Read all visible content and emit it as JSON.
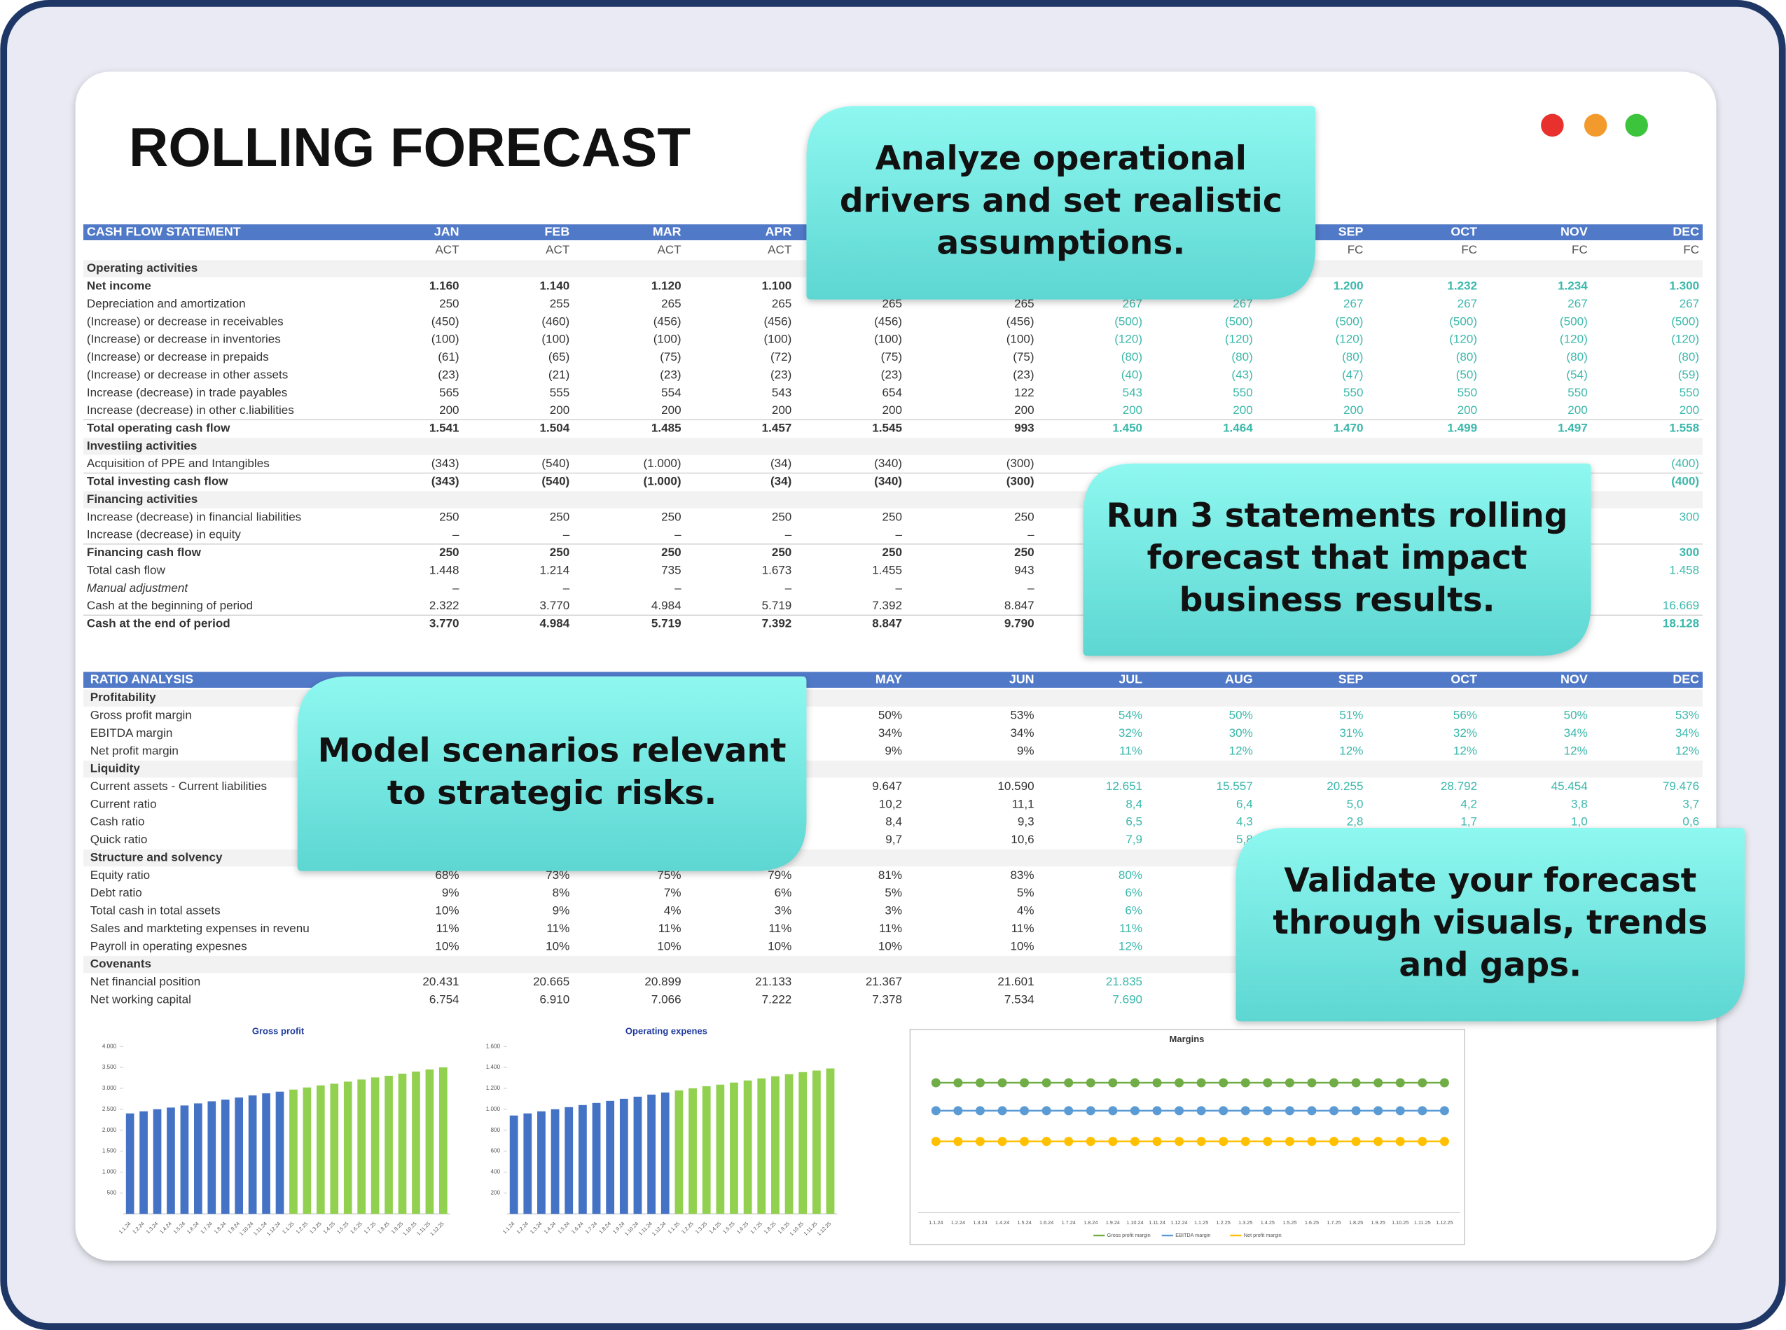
{
  "title": "ROLLING FORECAST",
  "callouts": [
    [
      "Analyze operational",
      "drivers and set realistic",
      "assumptions."
    ],
    [
      "Run 3 statements rolling",
      "forecast that impact",
      "business results."
    ],
    [
      "Model scenarios relevant",
      "to strategic risks."
    ],
    [
      "Validate your forecast",
      "through visuals, trends",
      "and gaps."
    ]
  ],
  "column_colors": [
    "#333333",
    "#333333",
    "#333333",
    "#333333",
    "#333333",
    "#333333",
    "#3bb8ab",
    "#3bb8ab",
    "#3bb8ab",
    "#3bb8ab",
    "#3bb8ab",
    "#3bb8ab"
  ],
  "cash_flow": {
    "label": "CASH FLOW STATEMENT",
    "months": [
      "JAN",
      "FEB",
      "MAR",
      "APR",
      null,
      null,
      null,
      null,
      "SEP",
      "OCT",
      "NOV",
      "DEC"
    ],
    "subheader": [
      "ACT",
      "ACT",
      "ACT",
      "ACT",
      null,
      null,
      null,
      null,
      "FC",
      "FC",
      "FC",
      "FC"
    ],
    "rows": [
      {
        "label": "Operating activities",
        "style": "section",
        "cells": []
      },
      {
        "label": "Net income",
        "style": "bold",
        "cells": [
          "1.160",
          "1.140",
          "1.120",
          "1.100",
          null,
          null,
          null,
          null,
          "1.200",
          "1.232",
          "1.234",
          "1.300"
        ]
      },
      {
        "label": "Depreciation and amortization",
        "style": "normal",
        "cells": [
          "250",
          "255",
          "265",
          "265",
          "265",
          "265",
          "267",
          "267",
          "267",
          "267",
          "267",
          "267"
        ]
      },
      {
        "label": "(Increase) or decrease in receivables",
        "style": "normal",
        "cells": [
          "(450)",
          "(460)",
          "(456)",
          "(456)",
          "(456)",
          "(456)",
          "(500)",
          "(500)",
          "(500)",
          "(500)",
          "(500)",
          "(500)"
        ]
      },
      {
        "label": "(Increase) or decrease in inventories",
        "style": "normal",
        "cells": [
          "(100)",
          "(100)",
          "(100)",
          "(100)",
          "(100)",
          "(100)",
          "(120)",
          "(120)",
          "(120)",
          "(120)",
          "(120)",
          "(120)"
        ]
      },
      {
        "label": "(Increase) or decrease in prepaids",
        "style": "normal",
        "cells": [
          "(61)",
          "(65)",
          "(75)",
          "(72)",
          "(75)",
          "(75)",
          "(80)",
          "(80)",
          "(80)",
          "(80)",
          "(80)",
          "(80)"
        ]
      },
      {
        "label": "(Increase) or decrease in other assets",
        "style": "normal",
        "cells": [
          "(23)",
          "(21)",
          "(23)",
          "(23)",
          "(23)",
          "(23)",
          "(40)",
          "(43)",
          "(47)",
          "(50)",
          "(54)",
          "(59)"
        ]
      },
      {
        "label": "Increase (decrease) in trade payables",
        "style": "normal",
        "cells": [
          "565",
          "555",
          "554",
          "543",
          "654",
          "122",
          "543",
          "550",
          "550",
          "550",
          "550",
          "550"
        ]
      },
      {
        "label": "Increase (decrease) in other c.liabilities",
        "style": "normal",
        "cells": [
          "200",
          "200",
          "200",
          "200",
          "200",
          "200",
          "200",
          "200",
          "200",
          "200",
          "200",
          "200"
        ]
      },
      {
        "label": "Total operating cash flow",
        "style": "bold",
        "cells": [
          "1.541",
          "1.504",
          "1.485",
          "1.457",
          "1.545",
          "993",
          "1.450",
          "1.464",
          "1.470",
          "1.499",
          "1.497",
          "1.558"
        ]
      },
      {
        "label": "Investiing activities",
        "style": "section",
        "cells": []
      },
      {
        "label": "Acquisition of PPE and Intangibles",
        "style": "normal",
        "cells": [
          "(343)",
          "(540)",
          "(1.000)",
          "(34)",
          "(340)",
          "(300)",
          null,
          null,
          null,
          null,
          null,
          "(400)"
        ]
      },
      {
        "label": "Total investing cash flow",
        "style": "bold",
        "cells": [
          "(343)",
          "(540)",
          "(1.000)",
          "(34)",
          "(340)",
          "(300)",
          null,
          null,
          null,
          null,
          null,
          "(400)"
        ]
      },
      {
        "label": "Financing activities",
        "style": "section",
        "cells": []
      },
      {
        "label": "Increase (decrease) in financial liabilities",
        "style": "normal",
        "cells": [
          "250",
          "250",
          "250",
          "250",
          "250",
          "250",
          null,
          null,
          null,
          null,
          null,
          "300"
        ]
      },
      {
        "label": "Increase (decrease) in equity",
        "style": "normal",
        "cells": [
          "–",
          "–",
          "–",
          "–",
          "–",
          "–",
          null,
          null,
          null,
          null,
          null,
          null
        ]
      },
      {
        "label": "Financing cash flow",
        "style": "bold",
        "cells": [
          "250",
          "250",
          "250",
          "250",
          "250",
          "250",
          null,
          null,
          null,
          null,
          null,
          "300"
        ]
      },
      {
        "label": "Total cash flow",
        "style": "normal",
        "cells": [
          "1.448",
          "1.214",
          "735",
          "1.673",
          "1.455",
          "943",
          null,
          null,
          null,
          null,
          null,
          "1.458"
        ]
      },
      {
        "label": "Manual adjustment",
        "style": "italic",
        "cells": [
          "–",
          "–",
          "–",
          "–",
          "–",
          "–",
          null,
          null,
          null,
          null,
          null,
          null
        ]
      },
      {
        "label": "Cash at the beginning of period",
        "style": "normal",
        "cells": [
          "2.322",
          "3.770",
          "4.984",
          "5.719",
          "7.392",
          "8.847",
          null,
          null,
          null,
          null,
          null,
          "16.669"
        ]
      },
      {
        "label": "Cash at the end of period",
        "style": "bold",
        "cells": [
          "3.770",
          "4.984",
          "5.719",
          "7.392",
          "8.847",
          "9.790",
          null,
          null,
          null,
          null,
          null,
          "18.128"
        ]
      }
    ]
  },
  "ratio_analysis": {
    "label": "RATIO ANALYSIS",
    "months": [
      null,
      null,
      null,
      null,
      "MAY",
      "JUN",
      "JUL",
      "AUG",
      "SEP",
      "OCT",
      "NOV",
      "DEC"
    ],
    "rows": [
      {
        "label": "Profitability",
        "style": "section",
        "cells": []
      },
      {
        "label": "Gross profit margin",
        "style": "normal",
        "cells": [
          null,
          null,
          null,
          null,
          "50%",
          "53%",
          "54%",
          "50%",
          "51%",
          "56%",
          "50%",
          "53%"
        ]
      },
      {
        "label": "EBITDA margin",
        "style": "normal",
        "cells": [
          null,
          null,
          null,
          null,
          "34%",
          "34%",
          "32%",
          "30%",
          "31%",
          "32%",
          "34%",
          "34%"
        ]
      },
      {
        "label": "Net profit margin",
        "style": "normal",
        "cells": [
          null,
          null,
          null,
          null,
          "9%",
          "9%",
          "11%",
          "12%",
          "12%",
          "12%",
          "12%",
          "12%"
        ]
      },
      {
        "label": "Liquidity",
        "style": "section",
        "cells": []
      },
      {
        "label": "Current assets - Current liabilities",
        "style": "normal",
        "cells": [
          null,
          null,
          null,
          null,
          "9.647",
          "10.590",
          "12.651",
          "15.557",
          "20.255",
          "28.792",
          "45.454",
          "79.476"
        ]
      },
      {
        "label": "Current ratio",
        "style": "normal",
        "cells": [
          null,
          null,
          null,
          null,
          "10,2",
          "11,1",
          "8,4",
          "6,4",
          "5,0",
          "4,2",
          "3,8",
          "3,7"
        ]
      },
      {
        "label": "Cash ratio",
        "style": "normal",
        "cells": [
          null,
          null,
          null,
          null,
          "8,4",
          "9,3",
          "6,5",
          "4,3",
          "2,8",
          "1,7",
          "1,0",
          "0,6"
        ]
      },
      {
        "label": "Quick ratio",
        "style": "normal",
        "cells": [
          null,
          null,
          null,
          null,
          "9,7",
          "10,6",
          "7,9",
          "5,8",
          null,
          null,
          null,
          null
        ]
      },
      {
        "label": "Structure and solvency",
        "style": "section",
        "cells": []
      },
      {
        "label": "Equity ratio",
        "style": "normal",
        "cells": [
          "68%",
          "73%",
          "75%",
          "79%",
          "81%",
          "83%",
          "80%",
          null,
          null,
          null,
          null,
          null
        ]
      },
      {
        "label": "Debt ratio",
        "style": "normal",
        "cells": [
          "9%",
          "8%",
          "7%",
          "6%",
          "5%",
          "5%",
          "6%",
          null,
          null,
          null,
          null,
          null
        ]
      },
      {
        "label": "Total cash in total assets",
        "style": "normal",
        "cells": [
          "10%",
          "9%",
          "4%",
          "3%",
          "3%",
          "4%",
          "6%",
          null,
          null,
          null,
          null,
          null
        ]
      },
      {
        "label": "Sales and markteting expenses in revenu",
        "style": "normal",
        "cells": [
          "11%",
          "11%",
          "11%",
          "11%",
          "11%",
          "11%",
          "11%",
          null,
          null,
          null,
          null,
          null
        ]
      },
      {
        "label": "Payroll in operating expesnes",
        "style": "normal",
        "cells": [
          "10%",
          "10%",
          "10%",
          "10%",
          "10%",
          "10%",
          "12%",
          null,
          null,
          null,
          null,
          null
        ]
      },
      {
        "label": "Covenants",
        "style": "section",
        "cells": []
      },
      {
        "label": "Net financial position",
        "style": "normal",
        "cells": [
          "20.431",
          "20.665",
          "20.899",
          "21.133",
          "21.367",
          "21.601",
          "21.835",
          null,
          null,
          null,
          null,
          null
        ]
      },
      {
        "label": "Net working capital",
        "style": "normal",
        "cells": [
          "6.754",
          "6.910",
          "7.066",
          "7.222",
          "7.378",
          "7.534",
          "7.690",
          null,
          null,
          null,
          null,
          null
        ]
      }
    ]
  },
  "chart_data": [
    {
      "type": "bar",
      "title": "Gross profit",
      "categories": [
        "1.1.24",
        "1.2.24",
        "1.3.24",
        "1.4.24",
        "1.5.24",
        "1.6.24",
        "1.7.24",
        "1.8.24",
        "1.9.24",
        "1.10.24",
        "1.11.24",
        "1.12.24",
        "1.1.25",
        "1.2.25",
        "1.3.25",
        "1.4.25",
        "1.5.25",
        "1.6.25",
        "1.7.25",
        "1.8.25",
        "1.9.25",
        "1.10.25",
        "1.11.25",
        "1.12.25"
      ],
      "values": [
        2400,
        2450,
        2500,
        2540,
        2590,
        2640,
        2690,
        2730,
        2780,
        2830,
        2880,
        2920,
        2970,
        3020,
        3070,
        3110,
        3160,
        3210,
        3260,
        3300,
        3350,
        3400,
        3450,
        3500
      ],
      "colors": [
        "#4472c4",
        "#4472c4",
        "#4472c4",
        "#4472c4",
        "#4472c4",
        "#4472c4",
        "#4472c4",
        "#4472c4",
        "#4472c4",
        "#4472c4",
        "#4472c4",
        "#4472c4",
        "#92d050",
        "#92d050",
        "#92d050",
        "#92d050",
        "#92d050",
        "#92d050",
        "#92d050",
        "#92d050",
        "#92d050",
        "#92d050",
        "#92d050",
        "#92d050"
      ],
      "ylim": [
        0,
        4000
      ],
      "yticks": [
        500,
        {
          "value": 1000,
          "label": "1.000"
        },
        {
          "value": 1500,
          "label": "1.500"
        },
        {
          "value": 2000,
          "label": "2.000"
        },
        {
          "value": 2500,
          "label": "2.500"
        },
        {
          "value": 3000,
          "label": "3.000"
        },
        {
          "value": 3500,
          "label": "3.500"
        },
        {
          "value": 4000,
          "label": "4.000"
        }
      ]
    },
    {
      "type": "bar",
      "title": "Operating expenes",
      "categories": [
        "1.1.24",
        "1.2.24",
        "1.3.24",
        "1.4.24",
        "1.5.24",
        "1.6.24",
        "1.7.24",
        "1.8.24",
        "1.9.24",
        "1.10.24",
        "1.11.24",
        "1.12.24",
        "1.1.25",
        "1.2.25",
        "1.3.25",
        "1.4.25",
        "1.5.25",
        "1.6.25",
        "1.7.25",
        "1.8.25",
        "1.9.25",
        "1.10.25",
        "1.11.25",
        "1.12.25"
      ],
      "values": [
        940,
        960,
        980,
        1000,
        1020,
        1040,
        1060,
        1080,
        1100,
        1120,
        1140,
        1160,
        1180,
        1200,
        1220,
        1235,
        1255,
        1275,
        1295,
        1315,
        1335,
        1355,
        1370,
        1390
      ],
      "colors": [
        "#4472c4",
        "#4472c4",
        "#4472c4",
        "#4472c4",
        "#4472c4",
        "#4472c4",
        "#4472c4",
        "#4472c4",
        "#4472c4",
        "#4472c4",
        "#4472c4",
        "#4472c4",
        "#92d050",
        "#92d050",
        "#92d050",
        "#92d050",
        "#92d050",
        "#92d050",
        "#92d050",
        "#92d050",
        "#92d050",
        "#92d050",
        "#92d050",
        "#92d050"
      ],
      "ylim": [
        0,
        1600
      ],
      "yticks": [
        200,
        400,
        600,
        800,
        {
          "value": 1000,
          "label": "1.000"
        },
        {
          "value": 1200,
          "label": "1.200"
        },
        {
          "value": 1400,
          "label": "1.400"
        },
        {
          "value": 1600,
          "label": "1.600"
        }
      ]
    },
    {
      "type": "line",
      "title": "Margins",
      "categories": [
        "1.1.24",
        "1.2.24",
        "1.3.24",
        "1.4.24",
        "1.5.24",
        "1.6.24",
        "1.7.24",
        "1.8.24",
        "1.9.24",
        "1.10.24",
        "1.11.24",
        "1.12.24",
        "1.1.25",
        "1.2.25",
        "1.3.25",
        "1.4.25",
        "1.5.25",
        "1.6.25",
        "1.7.25",
        "1.8.25",
        "1.9.25",
        "1.10.25",
        "1.11.25",
        "1.12.25"
      ],
      "ylim": [
        -40,
        70
      ],
      "series": [
        {
          "name": "Gross profit margin",
          "color": "#70ad47",
          "values": [
            53,
            53,
            53,
            53,
            53,
            53,
            53,
            53,
            53,
            53,
            53,
            53,
            53,
            53,
            53,
            53,
            53,
            53,
            53,
            53,
            53,
            53,
            53,
            53
          ]
        },
        {
          "name": "EBITDA margin",
          "color": "#5b9bd5",
          "values": [
            33,
            33,
            33,
            33,
            33,
            33,
            33,
            33,
            33,
            33,
            33,
            33,
            33,
            33,
            33,
            33,
            33,
            33,
            33,
            33,
            33,
            33,
            33,
            33
          ]
        },
        {
          "name": "Net profit margin",
          "color": "#ffc000",
          "values": [
            11,
            11,
            11,
            11,
            11,
            11,
            11,
            11,
            11,
            11,
            11,
            11,
            11,
            11,
            11,
            11,
            11,
            11,
            11,
            11,
            11,
            11,
            11,
            11
          ]
        }
      ]
    }
  ]
}
